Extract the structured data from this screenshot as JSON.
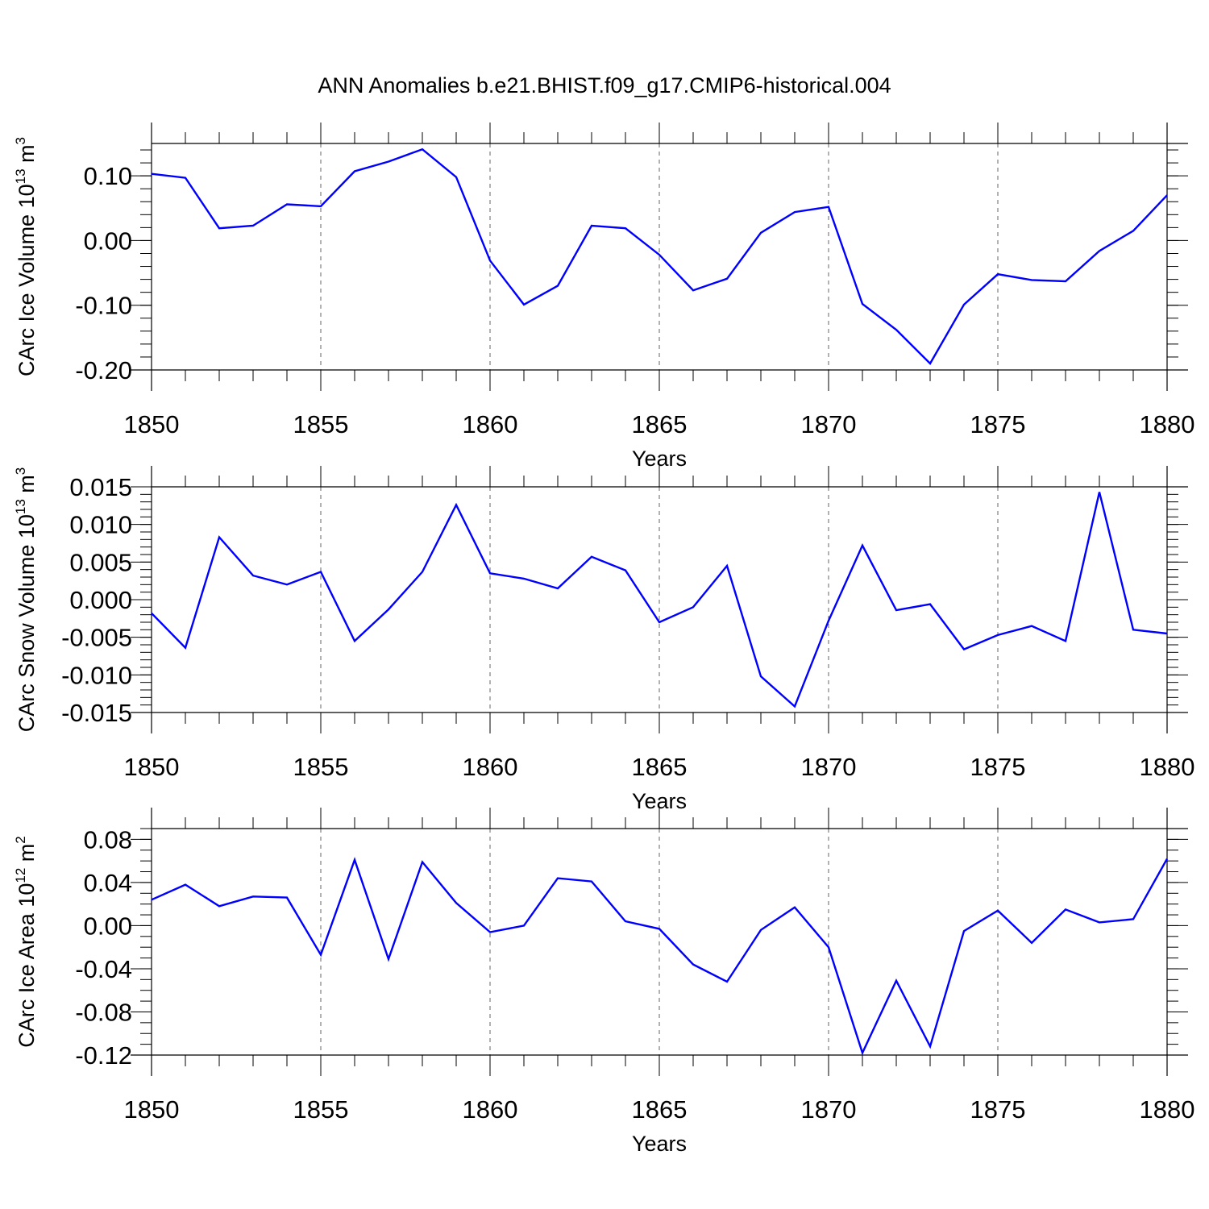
{
  "title": "ANN Anomalies b.e21.BHIST.f09_g17.CMIP6-historical.004",
  "line_color": "#0000ff",
  "chart_data": [
    {
      "type": "line",
      "ylabel": "CArc Ice Volume 10",
      "ylabel_exp": "13",
      "ylabel_unit": " m",
      "ylabel_unit_exp": "3",
      "xlabel": "Years",
      "xlim": [
        1850,
        1880
      ],
      "ylim": [
        -0.2,
        0.15
      ],
      "yticks": [
        -0.2,
        -0.1,
        0.0,
        0.1
      ],
      "yticklabels": [
        "-0.20",
        "-0.10",
        "0.00",
        "0.10"
      ],
      "yminor": 0.02,
      "xticks": [
        1850,
        1855,
        1860,
        1865,
        1870,
        1875,
        1880
      ],
      "xticklabels": [
        "1850",
        "1855",
        "1860",
        "1865",
        "1870",
        "1875",
        "1880"
      ],
      "series": [
        {
          "x": [
            1850,
            1851,
            1852,
            1853,
            1854,
            1855,
            1856,
            1857,
            1858,
            1859,
            1860,
            1861,
            1862,
            1863,
            1864,
            1865,
            1866,
            1867,
            1868,
            1869,
            1870,
            1871,
            1872,
            1873,
            1874,
            1875,
            1876,
            1877,
            1878,
            1879,
            1880
          ],
          "values": [
            0.103,
            0.097,
            0.019,
            0.023,
            0.056,
            0.053,
            0.107,
            0.122,
            0.141,
            0.098,
            -0.031,
            -0.099,
            -0.07,
            0.023,
            0.019,
            -0.022,
            -0.077,
            -0.059,
            0.012,
            0.044,
            0.052,
            -0.098,
            -0.138,
            -0.19,
            -0.099,
            -0.052,
            -0.061,
            -0.063,
            -0.016,
            0.015,
            0.07
          ]
        }
      ]
    },
    {
      "type": "line",
      "ylabel": "CArc Snow Volume 10",
      "ylabel_exp": "13",
      "ylabel_unit": " m",
      "ylabel_unit_exp": "3",
      "xlabel": "Years",
      "xlim": [
        1850,
        1880
      ],
      "ylim": [
        -0.015,
        0.015
      ],
      "yticks": [
        -0.015,
        -0.01,
        -0.005,
        0.0,
        0.005,
        0.01,
        0.015
      ],
      "yticklabels": [
        "-0.015",
        "-0.010",
        "-0.005",
        "0.000",
        "0.005",
        "0.010",
        "0.015"
      ],
      "yminor": 0.001,
      "xticks": [
        1850,
        1855,
        1860,
        1865,
        1870,
        1875,
        1880
      ],
      "xticklabels": [
        "1850",
        "1855",
        "1860",
        "1865",
        "1870",
        "1875",
        "1880"
      ],
      "series": [
        {
          "x": [
            1850,
            1851,
            1852,
            1853,
            1854,
            1855,
            1856,
            1857,
            1858,
            1859,
            1860,
            1861,
            1862,
            1863,
            1864,
            1865,
            1866,
            1867,
            1868,
            1869,
            1870,
            1871,
            1872,
            1873,
            1874,
            1875,
            1876,
            1877,
            1878,
            1879,
            1880
          ],
          "values": [
            -0.0018,
            -0.0064,
            0.0083,
            0.0032,
            0.002,
            0.0037,
            -0.0055,
            -0.0013,
            0.0037,
            0.0126,
            0.0035,
            0.0028,
            0.0015,
            0.0057,
            0.0039,
            -0.003,
            -0.001,
            0.0045,
            -0.0102,
            -0.0142,
            -0.0028,
            0.0072,
            -0.0014,
            -0.0006,
            -0.0066,
            -0.0047,
            -0.0035,
            -0.0055,
            0.0143,
            -0.004,
            -0.0045
          ]
        }
      ]
    },
    {
      "type": "line",
      "ylabel": "CArc Ice Area 10",
      "ylabel_exp": "12",
      "ylabel_unit": " m",
      "ylabel_unit_exp": "2",
      "xlabel": "Years",
      "xlim": [
        1850,
        1880
      ],
      "ylim": [
        -0.12,
        0.09
      ],
      "yticks": [
        -0.12,
        -0.08,
        -0.04,
        0.0,
        0.04,
        0.08
      ],
      "yticklabels": [
        "-0.12",
        "-0.08",
        "-0.04",
        "0.00",
        "0.04",
        "0.08"
      ],
      "yminor": 0.01,
      "xticks": [
        1850,
        1855,
        1860,
        1865,
        1870,
        1875,
        1880
      ],
      "xticklabels": [
        "1850",
        "1855",
        "1860",
        "1865",
        "1870",
        "1875",
        "1880"
      ],
      "series": [
        {
          "x": [
            1850,
            1851,
            1852,
            1853,
            1854,
            1855,
            1856,
            1857,
            1858,
            1859,
            1860,
            1861,
            1862,
            1863,
            1864,
            1865,
            1866,
            1867,
            1868,
            1869,
            1870,
            1871,
            1872,
            1873,
            1874,
            1875,
            1876,
            1877,
            1878,
            1879,
            1880
          ],
          "values": [
            0.024,
            0.038,
            0.018,
            0.027,
            0.026,
            -0.027,
            0.061,
            -0.031,
            0.059,
            0.021,
            -0.006,
            0.0,
            0.044,
            0.041,
            0.004,
            -0.003,
            -0.036,
            -0.052,
            -0.004,
            0.017,
            -0.02,
            -0.118,
            -0.051,
            -0.112,
            -0.005,
            0.014,
            -0.016,
            0.015,
            0.003,
            0.006,
            0.062
          ]
        }
      ]
    }
  ]
}
